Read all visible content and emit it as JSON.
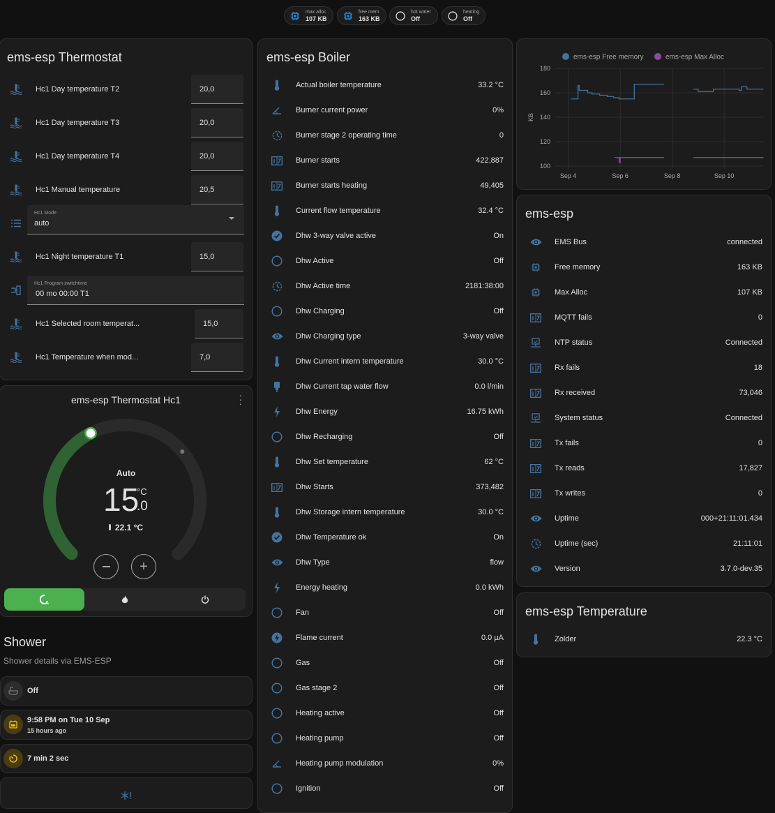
{
  "colors": {
    "icon": "#44739e",
    "green": "#4caf50",
    "free_memory": "#44739e",
    "max_alloc": "#8c4c9a",
    "amber": "#ffc107"
  },
  "badges": [
    {
      "label": "max alloc",
      "value": "107 KB",
      "icon": "chip-icon"
    },
    {
      "label": "free mem",
      "value": "163 KB",
      "icon": "chip-icon"
    },
    {
      "label": "hot water",
      "value": "Off",
      "icon": "circle-outline-icon"
    },
    {
      "label": "heating",
      "value": "Off",
      "icon": "circle-outline-icon"
    }
  ],
  "thermostat": {
    "title": "ems-esp Thermostat",
    "rows": [
      {
        "label": "Hc1 Day temperature T2",
        "value": "20,0",
        "icon": "thermometer-water"
      },
      {
        "label": "Hc1 Day temperature T3",
        "value": "20,0",
        "icon": "thermometer-water"
      },
      {
        "label": "Hc1 Day temperature T4",
        "value": "20,0",
        "icon": "thermometer-water"
      },
      {
        "label": "Hc1 Manual temperature",
        "value": "20,5",
        "icon": "thermometer-water"
      }
    ],
    "mode": {
      "label": "Hc1 Mode",
      "value": "auto"
    },
    "night": {
      "label": "Hc1 Night temperature T1",
      "value": "15,0"
    },
    "switchtime": {
      "label": "Hc1 Program switchtime",
      "value": "00 mo 00:00 T1"
    },
    "selected": {
      "label": "Hc1 Selected room temperat...",
      "value": "15,0"
    },
    "whenmode": {
      "label": "Hc1 Temperature when mod...",
      "value": "7,0"
    }
  },
  "hc1": {
    "title": "ems-esp Thermostat Hc1",
    "mode_label": "Auto",
    "target_int": "15",
    "target_dec": ".0",
    "unit": "°C",
    "target": 15.0,
    "current": 22.1,
    "current_text": "22.1 °C",
    "range": [
      5,
      30
    ],
    "modes": [
      {
        "name": "auto",
        "active": true
      },
      {
        "name": "heat",
        "active": false
      },
      {
        "name": "off",
        "active": false
      }
    ]
  },
  "shower": {
    "title": "Shower",
    "subtitle": "Shower details via EMS-ESP",
    "state": "Off",
    "last_time": "9:58 PM on Tue 10 Sep",
    "last_ago": "15 hours ago",
    "duration": "7 min 2 sec"
  },
  "boiler": {
    "title": "ems-esp Boiler",
    "rows": [
      {
        "label": "Actual boiler temperature",
        "value": "33.2 °C",
        "icon": "thermometer"
      },
      {
        "label": "Burner current power",
        "value": "0%",
        "icon": "angle"
      },
      {
        "label": "Burner stage 2 operating time",
        "value": "0",
        "icon": "clock"
      },
      {
        "label": "Burner starts",
        "value": "422,887",
        "icon": "counter"
      },
      {
        "label": "Burner starts heating",
        "value": "49,405",
        "icon": "counter"
      },
      {
        "label": "Current flow temperature",
        "value": "32.4 °C",
        "icon": "thermometer"
      },
      {
        "label": "Dhw 3-way valve active",
        "value": "On",
        "icon": "check-circle"
      },
      {
        "label": "Dhw Active",
        "value": "Off",
        "icon": "circle-outline"
      },
      {
        "label": "Dhw Active time",
        "value": "2181:38:00",
        "icon": "clock"
      },
      {
        "label": "Dhw Charging",
        "value": "Off",
        "icon": "circle-outline"
      },
      {
        "label": "Dhw Charging type",
        "value": "3-way valve",
        "icon": "eye"
      },
      {
        "label": "Dhw Current intern temperature",
        "value": "30.0 °C",
        "icon": "thermometer"
      },
      {
        "label": "Dhw Current tap water flow",
        "value": "0.0 l/min",
        "icon": "water-pump"
      },
      {
        "label": "Dhw Energy",
        "value": "16.75 kWh",
        "icon": "lightning"
      },
      {
        "label": "Dhw Recharging",
        "value": "Off",
        "icon": "circle-outline"
      },
      {
        "label": "Dhw Set temperature",
        "value": "62 °C",
        "icon": "thermometer"
      },
      {
        "label": "Dhw Starts",
        "value": "373,482",
        "icon": "counter"
      },
      {
        "label": "Dhw Storage intern temperature",
        "value": "30.0 °C",
        "icon": "thermometer"
      },
      {
        "label": "Dhw Temperature ok",
        "value": "On",
        "icon": "check-circle"
      },
      {
        "label": "Dhw Type",
        "value": "flow",
        "icon": "eye"
      },
      {
        "label": "Energy heating",
        "value": "0.0 kWh",
        "icon": "lightning"
      },
      {
        "label": "Fan",
        "value": "Off",
        "icon": "circle-outline"
      },
      {
        "label": "Flame current",
        "value": "0.0 µA",
        "icon": "flash-circle"
      },
      {
        "label": "Gas",
        "value": "Off",
        "icon": "circle-outline"
      },
      {
        "label": "Gas stage 2",
        "value": "Off",
        "icon": "circle-outline"
      },
      {
        "label": "Heating active",
        "value": "Off",
        "icon": "circle-outline"
      },
      {
        "label": "Heating pump",
        "value": "Off",
        "icon": "circle-outline"
      },
      {
        "label": "Heating pump modulation",
        "value": "0%",
        "icon": "angle"
      },
      {
        "label": "Ignition",
        "value": "Off",
        "icon": "circle-outline"
      }
    ]
  },
  "chart_data": {
    "type": "line",
    "ylabel": "KB",
    "ylim": [
      100,
      180
    ],
    "yticks": [
      100,
      120,
      140,
      160,
      180
    ],
    "xticks": [
      "Sep 4",
      "Sep 6",
      "Sep 8",
      "Sep 10"
    ],
    "xlim": [
      "Sep 3 12:00",
      "Sep 11 12:00"
    ],
    "grid": true,
    "legend": "top",
    "series": [
      {
        "name": "ems-esp Free memory",
        "color": "#44739e",
        "step": true,
        "points": [
          [
            "Sep 4 03:00",
            155
          ],
          [
            "Sep 4 09:00",
            155
          ],
          [
            "Sep 4 09:00",
            166
          ],
          [
            "Sep 4 10:00",
            162
          ],
          [
            "Sep 4 18:00",
            160
          ],
          [
            "Sep 4 22:00",
            159
          ],
          [
            "Sep 5 05:00",
            158
          ],
          [
            "Sep 5 12:00",
            157
          ],
          [
            "Sep 5 18:00",
            156
          ],
          [
            "Sep 5 23:00",
            155
          ],
          [
            "Sep 6 13:00",
            155
          ],
          [
            "Sep 6 13:00",
            167
          ],
          [
            "Sep 7 16:00",
            167
          ],
          null,
          [
            "Sep 8 20:00",
            163
          ],
          [
            "Sep 9 00:00",
            161
          ],
          [
            "Sep 9 10:00",
            161
          ],
          [
            "Sep 9 14:00",
            163
          ],
          [
            "Sep 10 14:00",
            162
          ],
          [
            "Sep 10 16:00",
            165
          ],
          [
            "Sep 10 21:00",
            163
          ],
          [
            "Sep 11 12:00",
            163
          ]
        ]
      },
      {
        "name": "ems-esp Max Alloc",
        "color": "#8c4c9a",
        "step": true,
        "points": [
          [
            "Sep 5 19:00",
            107
          ],
          [
            "Sep 5 23:00",
            107
          ],
          [
            "Sep 5 23:00",
            103
          ],
          [
            "Sep 6 00:00",
            107
          ],
          [
            "Sep 7 16:00",
            107
          ],
          null,
          [
            "Sep 8 20:00",
            107
          ],
          [
            "Sep 11 12:00",
            107
          ]
        ]
      }
    ]
  },
  "emsesp": {
    "title": "ems-esp",
    "rows": [
      {
        "label": "EMS Bus",
        "value": "connected",
        "icon": "eye"
      },
      {
        "label": "Free memory",
        "value": "163 KB",
        "icon": "chip"
      },
      {
        "label": "Max Alloc",
        "value": "107 KB",
        "icon": "chip"
      },
      {
        "label": "MQTT fails",
        "value": "0",
        "icon": "counter"
      },
      {
        "label": "NTP status",
        "value": "Connected",
        "icon": "monitor-check"
      },
      {
        "label": "Rx fails",
        "value": "18",
        "icon": "counter"
      },
      {
        "label": "Rx received",
        "value": "73,046",
        "icon": "counter"
      },
      {
        "label": "System status",
        "value": "Connected",
        "icon": "monitor-check"
      },
      {
        "label": "Tx fails",
        "value": "0",
        "icon": "counter"
      },
      {
        "label": "Tx reads",
        "value": "17,827",
        "icon": "counter"
      },
      {
        "label": "Tx writes",
        "value": "0",
        "icon": "counter"
      },
      {
        "label": "Uptime",
        "value": "000+21:11:01.434",
        "icon": "eye"
      },
      {
        "label": "Uptime (sec)",
        "value": "21:11:01",
        "icon": "clock"
      },
      {
        "label": "Version",
        "value": "3.7.0-dev.35",
        "icon": "eye"
      }
    ]
  },
  "temperature": {
    "title": "ems-esp Temperature",
    "rows": [
      {
        "label": "Zolder",
        "value": "22.3 °C",
        "icon": "thermometer"
      }
    ]
  }
}
